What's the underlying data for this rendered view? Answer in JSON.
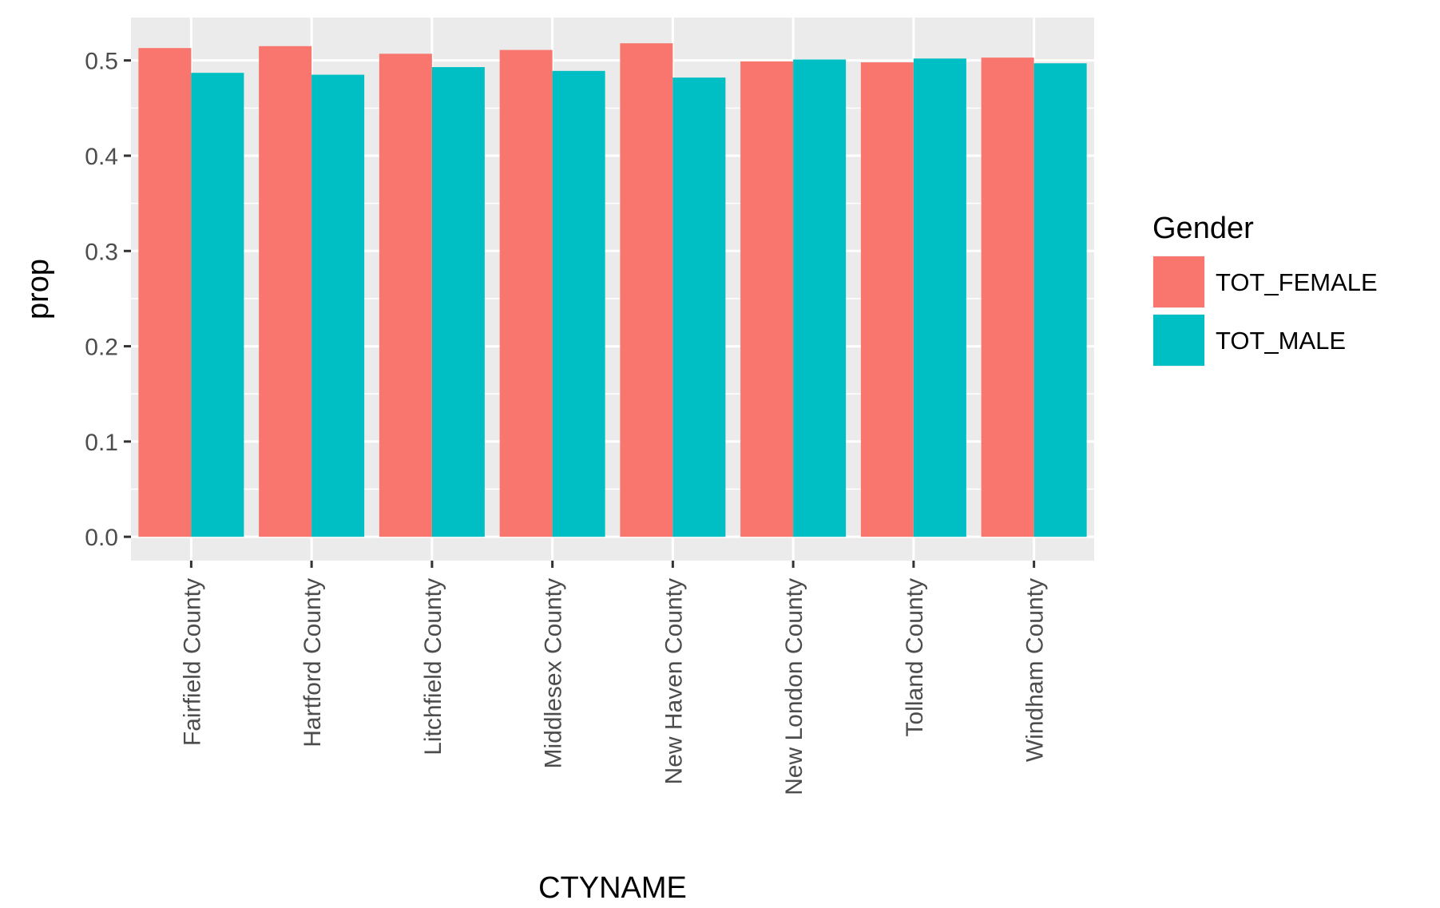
{
  "chart_data": {
    "type": "bar",
    "xlabel": "CTYNAME",
    "ylabel": "prop",
    "categories": [
      "Fairfield County",
      "Hartford County",
      "Litchfield County",
      "Middlesex County",
      "New Haven County",
      "New London County",
      "Tolland County",
      "Windham County"
    ],
    "series": [
      {
        "name": "TOT_FEMALE",
        "color": "#F8766D",
        "values": [
          0.513,
          0.515,
          0.507,
          0.511,
          0.518,
          0.499,
          0.498,
          0.503
        ]
      },
      {
        "name": "TOT_MALE",
        "color": "#00BFC4",
        "values": [
          0.487,
          0.485,
          0.493,
          0.489,
          0.482,
          0.501,
          0.502,
          0.497
        ]
      }
    ],
    "ylim": [
      -0.025,
      0.545
    ],
    "yticks": [
      0.0,
      0.1,
      0.2,
      0.3,
      0.4,
      0.5
    ],
    "ytick_labels": [
      "0.0",
      "0.1",
      "0.2",
      "0.3",
      "0.4",
      "0.5"
    ],
    "legend": {
      "title": "Gender",
      "position": "right"
    },
    "grid": true,
    "panel_background": "#EBEBEB"
  }
}
